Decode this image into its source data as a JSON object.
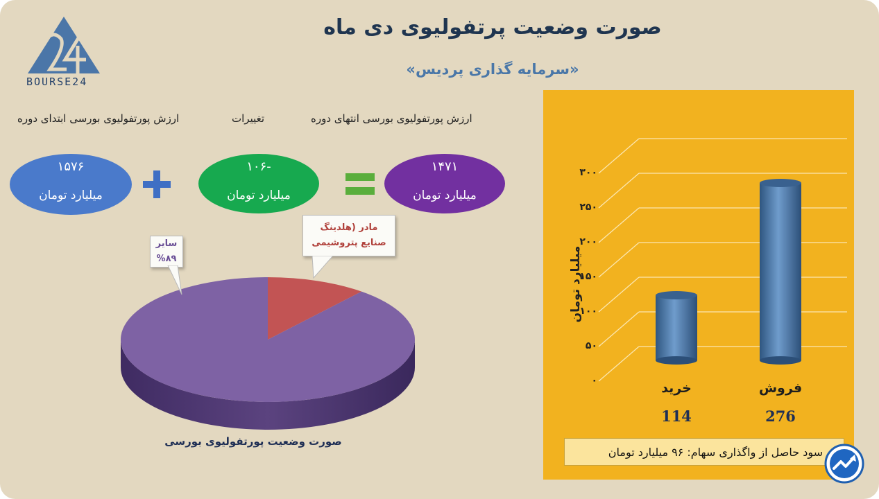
{
  "header": {
    "title": "صورت وضعیت پرتفولیوی دی ماه",
    "subtitle": "«سرمایه گذاری پردیس»",
    "logo_text": "BOURSE24"
  },
  "summary": {
    "start_label": "ارزش پورتفولیوی بورسی ابتدای دوره",
    "change_label": "تغییرات",
    "end_label": "ارزش پورتفولیوی بورسی انتهای دوره",
    "start_value": "۱۵۷۶",
    "change_value": "-۱۰۶",
    "end_value": "۱۴۷۱",
    "unit": "میلیارد تومان",
    "colors": {
      "start": "#4a7acb",
      "change": "#17a94f",
      "end": "#7230a0",
      "plus": "#3f6fc4",
      "equals": "#5aae3c"
    }
  },
  "pie": {
    "caption": "صورت وضعیت پورتفولیوی بورسی",
    "callouts": {
      "other_line1": "سایر",
      "other_line2": "%۸۹",
      "holding_line1": "مادر (هلدینگ",
      "holding_line2": "صنایع پتروشیمی"
    }
  },
  "footer": {
    "text": "سود حاصل از واگذاری سهام:  ۹۶ میلیارد تومان"
  },
  "chart_data": [
    {
      "type": "pie",
      "slices": [
        {
          "label": "سایر",
          "value": 89,
          "color": "#7e62a4"
        },
        {
          "label": "مادر (هلدینگ صنایع پتروشیمی",
          "value": 11,
          "color": "#c25454"
        }
      ]
    },
    {
      "type": "bar",
      "categories": [
        "خرید",
        "فروش"
      ],
      "values": [
        114,
        276
      ],
      "value_labels": [
        "114",
        "276"
      ],
      "ylabel": "میلیارد تومان",
      "ylim": [
        0,
        300
      ],
      "yticks": [
        0,
        50,
        100,
        150,
        200,
        250,
        300
      ],
      "ytick_labels": [
        "۰",
        "۵۰",
        "۱۰۰",
        "۱۵۰",
        "۲۰۰",
        "۲۵۰",
        "۳۰۰"
      ],
      "grid": true,
      "colors": {
        "bar": "#4f79aa",
        "background": "#f2b21f"
      }
    }
  ]
}
